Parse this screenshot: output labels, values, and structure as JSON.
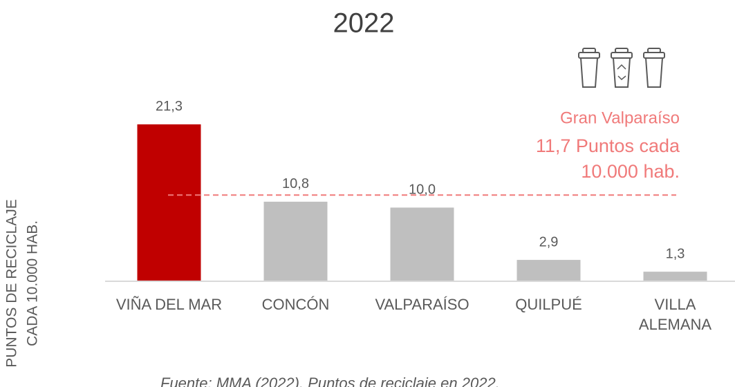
{
  "chart_data": {
    "type": "bar",
    "title": "2022",
    "y_axis_label": [
      "PUNTOS DE RECICLAJE",
      "CADA 10.000 HAB."
    ],
    "categories": [
      "VIÑA DEL MAR",
      "CONCÓN",
      "VALPARAÍSO",
      "QUILPUÉ",
      [
        "VILLA",
        "ALEMANA"
      ]
    ],
    "values": [
      21.3,
      10.8,
      10.0,
      2.9,
      1.3
    ],
    "value_labels": [
      "21,3",
      "10,8",
      "10,0",
      "2,9",
      "1,3"
    ],
    "colors": [
      "#c00000",
      "#bfbfbf",
      "#bfbfbf",
      "#bfbfbf",
      "#bfbfbf"
    ],
    "ylim": [
      0,
      25
    ],
    "reference_line": {
      "value": 11.7,
      "color": "#f07a7a",
      "labels": [
        "Gran Valparaíso",
        "11,7 Puntos cada",
        "10.000 hab."
      ]
    },
    "source": "Fuente: MMA (2022). Puntos de reciclaje en 2022."
  }
}
